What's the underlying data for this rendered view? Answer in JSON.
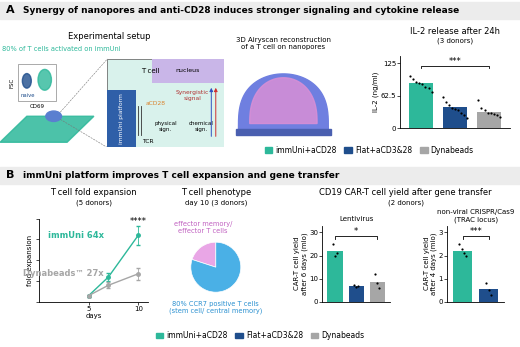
{
  "header_A": {
    "letter": "A",
    "title": "Synergy of nanopores and anti-CD28 induces stronger signaling and cytokine release"
  },
  "header_B": {
    "letter": "B",
    "title": "immUni platform improves T cell expansion and gene transfer"
  },
  "setup": {
    "title": "Experimental setup",
    "activation": "80% of T cells activated on immUni",
    "flow_y": "FSC",
    "flow_x": "CD69",
    "naive": "naive",
    "cell": "T cell",
    "nucleus": "nucleus",
    "platform": "immUni platform",
    "costim": "aCD28",
    "synergy": "Synergistic\nsignal",
    "receptor": "TCR",
    "physical": "physical\nsign.",
    "chemical": "chemical\nsign."
  },
  "airyscan": "3D Airyscan reconstruction\nof a T cell on nanopores",
  "car_t": {
    "title": "CD19 CAR-T cell yield after gene transfer",
    "subtitle": "(2 donors)"
  },
  "chart_data": [
    {
      "type": "bar",
      "title": "IL-2 release after 24h",
      "subtitle": "(3 donors)",
      "y_label": "IL-2 (ng/ml)",
      "categories": [
        "immUni+aCD28",
        "Flat+aCD3&28",
        "Dynabeads"
      ],
      "values": [
        88,
        42,
        32
      ],
      "colors": [
        "#2db89a",
        "#1f4e8c",
        "#a6a6a6"
      ],
      "points": [
        [
          100,
          95,
          90,
          88,
          85,
          80,
          78,
          70
        ],
        [
          60,
          50,
          45,
          40,
          38,
          35,
          30,
          25,
          20
        ],
        [
          55,
          40,
          35,
          30,
          30,
          28,
          25,
          22
        ]
      ],
      "significance": {
        "from": "immUni+aCD28",
        "to": "Dynabeads",
        "label": "***"
      },
      "ylim": [
        0,
        140
      ],
      "yticks": [
        0,
        62.5,
        125
      ],
      "tick_labels": "y",
      "legend": "upper center"
    },
    {
      "type": "line",
      "title": "T cell fold expansion",
      "subtitle": "(5 donors)",
      "x_label": "days",
      "y_label": "fold expansion",
      "x": [
        5,
        7,
        10
      ],
      "series": [
        {
          "name": "immUni",
          "color": "#2db89a",
          "marker": "o",
          "values": [
            6,
            24,
            64
          ],
          "errors": [
            1,
            4,
            9
          ],
          "end_label": "64x"
        },
        {
          "name": "Dynabeads™",
          "color": "#a6a6a6",
          "marker": "o",
          "values": [
            6,
            16,
            27
          ],
          "errors": [
            1,
            3,
            6
          ],
          "end_label": "27x"
        }
      ],
      "significance": "****",
      "xlim": [
        0,
        11
      ],
      "xticks": [
        5,
        10
      ],
      "ylim": [
        0,
        80
      ],
      "yticks": [
        0,
        20,
        40,
        60,
        80
      ],
      "tick_labels": "x"
    },
    {
      "type": "pie",
      "title": "T cell phenotype",
      "subtitle": "day 10 (3 donors)",
      "categories": [
        "effector memory/\neffector T cells",
        "80% CCR7 positive T cells\n(stem cell/ central memory)"
      ],
      "values": [
        20,
        80
      ],
      "colors": [
        "#e9a6e6",
        "#4ab0e6"
      ]
    },
    {
      "type": "bar",
      "title": "Lentivirus",
      "y_label": "CAR-T cell yield\nafter 6 days (mio)",
      "categories": [
        "immUni+aCD28",
        "Flat+aCD3&28",
        "Dynabeads"
      ],
      "values": [
        22,
        7,
        8.5
      ],
      "colors": [
        "#2db89a",
        "#1f4e8c",
        "#a6a6a6"
      ],
      "points": [
        [
          25,
          20,
          21
        ],
        [
          7.5,
          6.5,
          7
        ],
        [
          12,
          8,
          6
        ]
      ],
      "significance": {
        "from": "immUni+aCD28",
        "to": "Dynabeads",
        "label": "*"
      },
      "ylim": [
        0,
        33
      ],
      "yticks": [
        0,
        10,
        20,
        30
      ],
      "tick_labels": "y",
      "legend": "lower center"
    },
    {
      "type": "bar",
      "title": "non-viral CRISPR/Cas9\n(TRAC locus)",
      "y_label": "CAR-T cell yield\nafter 4 days (mio)",
      "categories": [
        "immUni+aCD28",
        "Flat+aCD3&28"
      ],
      "values": [
        2.2,
        0.55
      ],
      "colors": [
        "#2db89a",
        "#1f4e8c"
      ],
      "points": [
        [
          2.5,
          2.3,
          2.1,
          2.0
        ],
        [
          0.8,
          0.5,
          0.3
        ]
      ],
      "significance": {
        "from": "immUni+aCD28",
        "to": "Flat+aCD3&28",
        "label": "***"
      },
      "ylim": [
        0,
        3.3
      ],
      "yticks": [
        0,
        1,
        2,
        3
      ],
      "tick_labels": "y"
    }
  ]
}
